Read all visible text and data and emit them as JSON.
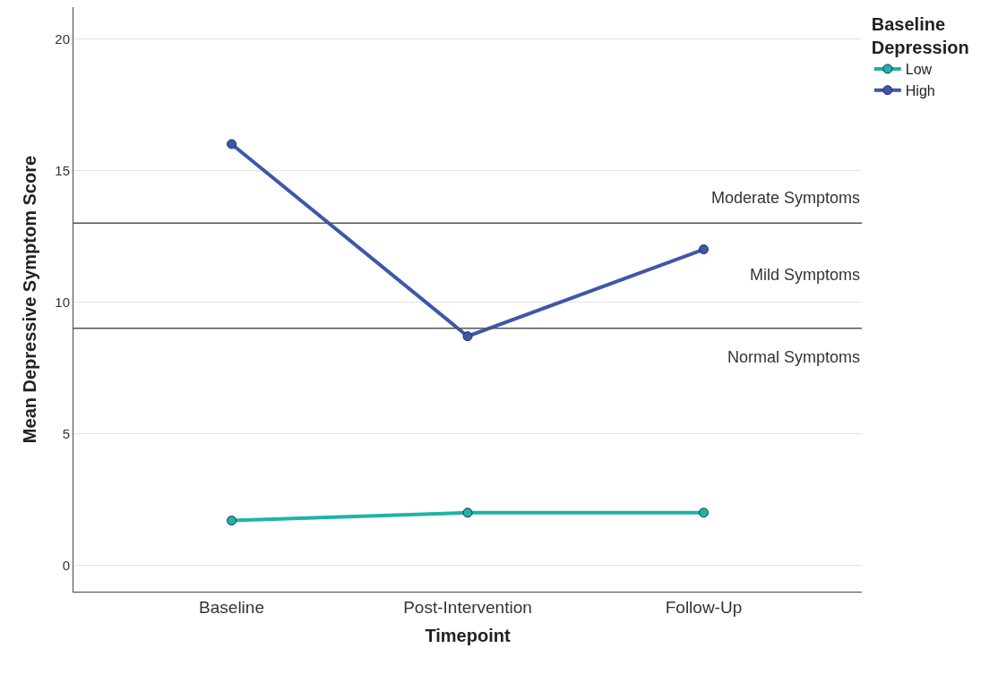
{
  "chart_data": {
    "type": "line",
    "xlabel": "Timepoint",
    "ylabel": "Mean Depressive Symptom Score",
    "legend_title": "Baseline\nDepression",
    "categories": [
      "Baseline",
      "Post-Intervention",
      "Follow-Up"
    ],
    "series": [
      {
        "name": "Low",
        "color": "#1db5a3",
        "values": [
          1.7,
          2.0,
          2.0
        ]
      },
      {
        "name": "High",
        "color": "#3f57a8",
        "values": [
          16.0,
          8.7,
          12.0
        ]
      }
    ],
    "ylim": [
      -1,
      21.2
    ],
    "yticks": [
      0,
      5,
      10,
      15,
      20
    ],
    "ref_lines": [
      {
        "axis": "y",
        "value": 13,
        "color": "#555555"
      },
      {
        "axis": "y",
        "value": 9,
        "color": "#555555"
      }
    ],
    "annotations": [
      "Moderate Symptoms",
      "Mild Symptoms",
      "Normal Symptoms"
    ],
    "grid": "y",
    "legend": "top right",
    "marker": "circle",
    "line_style": "solid"
  }
}
